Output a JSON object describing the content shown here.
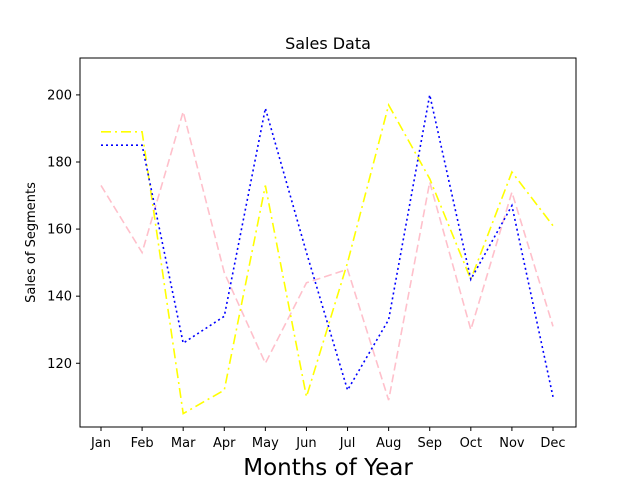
{
  "chart_data": {
    "type": "line",
    "title": "Sales Data",
    "xlabel": "Months of Year",
    "ylabel": "Sales of Segments",
    "categories": [
      "Jan",
      "Feb",
      "Mar",
      "Apr",
      "May",
      "Jun",
      "Jul",
      "Aug",
      "Sep",
      "Oct",
      "Nov",
      "Dec"
    ],
    "ylim": [
      101,
      211
    ],
    "yticks": [
      120,
      140,
      160,
      180,
      200
    ],
    "grid": false,
    "series": [
      {
        "color": "#ffc0cb",
        "line_style": "dashed",
        "values": [
          173,
          153,
          195,
          147,
          120,
          144,
          148,
          109,
          174,
          130,
          171,
          131
        ]
      },
      {
        "color": "#ffff00",
        "line_style": "dash-dot",
        "values": [
          189,
          189,
          105,
          112,
          173,
          110,
          150,
          197,
          175,
          145,
          177,
          161
        ]
      },
      {
        "color": "#0000ff",
        "line_style": "dotted",
        "values": [
          185,
          185,
          126,
          134,
          196,
          153,
          112,
          133,
          200,
          145,
          167,
          110
        ]
      }
    ]
  }
}
